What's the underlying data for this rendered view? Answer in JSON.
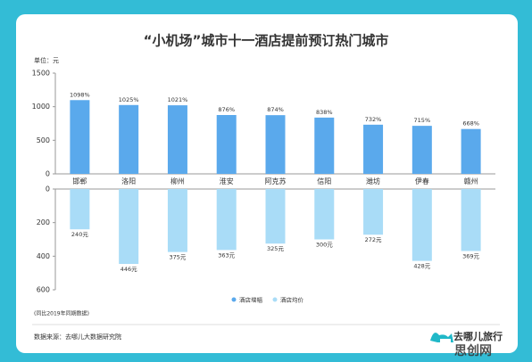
{
  "chart_data": [
    {
      "type": "bar",
      "title": "“小机场”城市十一酒店提前预订热门城市",
      "unit_label": "单位：元",
      "categories": [
        "邯郸",
        "洛阳",
        "柳州",
        "淮安",
        "阿克苏",
        "信阳",
        "潍坊",
        "伊春",
        "赣州"
      ],
      "series": [
        {
          "name": "酒店增幅",
          "color": "#5aa9ec",
          "values": [
            1098,
            1025,
            1021,
            876,
            874,
            838,
            732,
            715,
            668
          ],
          "value_labels": [
            "1098%",
            "1025%",
            "1021%",
            "876%",
            "874%",
            "838%",
            "732%",
            "715%",
            "668%"
          ]
        }
      ],
      "ylim": [
        0,
        1500
      ],
      "yticks": [
        0,
        500,
        1000,
        1500
      ]
    },
    {
      "type": "bar",
      "inverted": true,
      "series": [
        {
          "name": "酒店均价",
          "color": "#a9dcf7",
          "values": [
            240,
            446,
            375,
            363,
            325,
            300,
            272,
            428,
            369
          ],
          "value_labels": [
            "240元",
            "446元",
            "375元",
            "363元",
            "325元",
            "300元",
            "272元",
            "428元",
            "369元"
          ]
        }
      ],
      "ylim": [
        0,
        600
      ],
      "yticks": [
        0,
        200,
        400,
        600
      ]
    }
  ],
  "note": "(同比2019年同期数据)",
  "source": "数据来源：去哪儿大数据研究院",
  "logo": "去哪儿旅行",
  "watermark": "思创网"
}
